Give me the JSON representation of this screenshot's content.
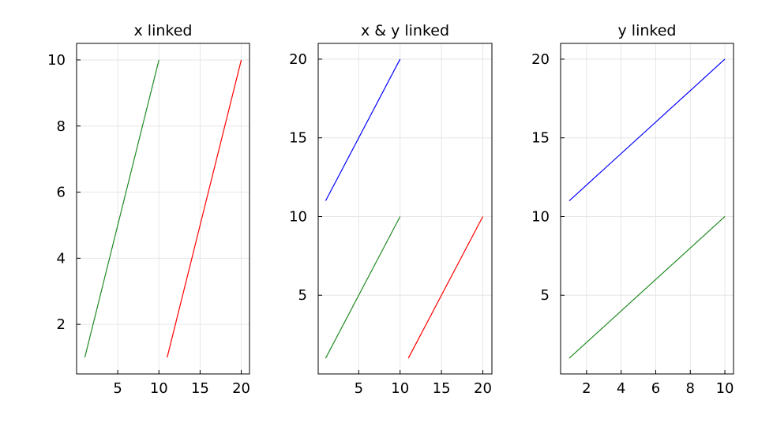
{
  "chart_data": [
    {
      "type": "line",
      "title": "x linked",
      "xlabel": "",
      "ylabel": "",
      "xlim": [
        -0.0,
        21.0
      ],
      "ylim": [
        0.5,
        10.5
      ],
      "xticks": [
        5,
        10,
        15,
        20
      ],
      "yticks": [
        2,
        4,
        6,
        8,
        10
      ],
      "grid": true,
      "series": [
        {
          "color": "#228B22",
          "x": [
            1,
            10
          ],
          "y": [
            1,
            10
          ]
        },
        {
          "color": "#FF0000",
          "x": [
            11,
            20
          ],
          "y": [
            1,
            10
          ]
        }
      ]
    },
    {
      "type": "line",
      "title": "x & y linked",
      "xlabel": "",
      "ylabel": "",
      "xlim": [
        0.1,
        21.1
      ],
      "ylim": [
        0.0,
        21.0
      ],
      "xticks": [
        5,
        10,
        15,
        20
      ],
      "yticks": [
        5,
        10,
        15,
        20
      ],
      "grid": true,
      "series": [
        {
          "color": "#0000FF",
          "x": [
            1,
            10
          ],
          "y": [
            11,
            20
          ]
        },
        {
          "color": "#228B22",
          "x": [
            1,
            10
          ],
          "y": [
            1,
            10
          ]
        },
        {
          "color": "#FF0000",
          "x": [
            11,
            20
          ],
          "y": [
            1,
            10
          ]
        }
      ]
    },
    {
      "type": "line",
      "title": "y linked",
      "xlabel": "",
      "ylabel": "",
      "xlim": [
        0.5,
        10.5
      ],
      "ylim": [
        0.0,
        21.0
      ],
      "xticks": [
        2,
        4,
        6,
        8,
        10
      ],
      "yticks": [
        5,
        10,
        15,
        20
      ],
      "grid": true,
      "series": [
        {
          "color": "#0000FF",
          "x": [
            1,
            10
          ],
          "y": [
            11,
            20
          ]
        },
        {
          "color": "#228B22",
          "x": [
            1,
            10
          ],
          "y": [
            1,
            10
          ]
        }
      ]
    }
  ]
}
